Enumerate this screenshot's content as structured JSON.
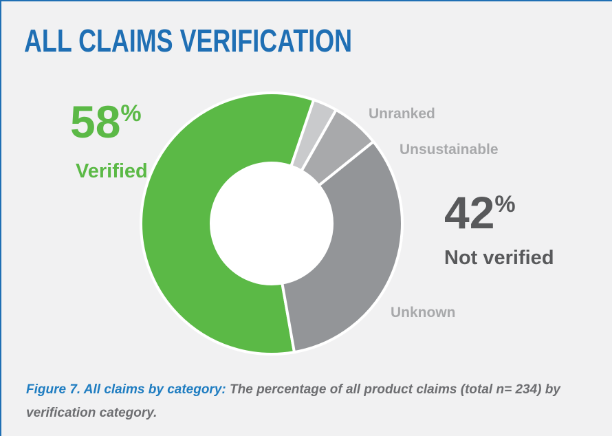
{
  "chart_data": {
    "type": "pie",
    "donut": true,
    "title": "ALL CLAIMS VERIFICATION",
    "categories": [
      "Verified",
      "Unranked",
      "Unsustainable",
      "Unknown"
    ],
    "values": [
      58,
      3,
      6,
      33
    ],
    "colors": [
      "#5bb946",
      "#c9cacc",
      "#a8a9ab",
      "#939598"
    ],
    "totals": [
      {
        "value": 58,
        "unit": "%"
      },
      {
        "value": 42,
        "unit": "%",
        "label": "Not verified"
      }
    ],
    "caption": {
      "lead": "Figure 7. All claims by category:",
      "text": "The percentage of all product claims (total n= 234) by verification category."
    }
  }
}
